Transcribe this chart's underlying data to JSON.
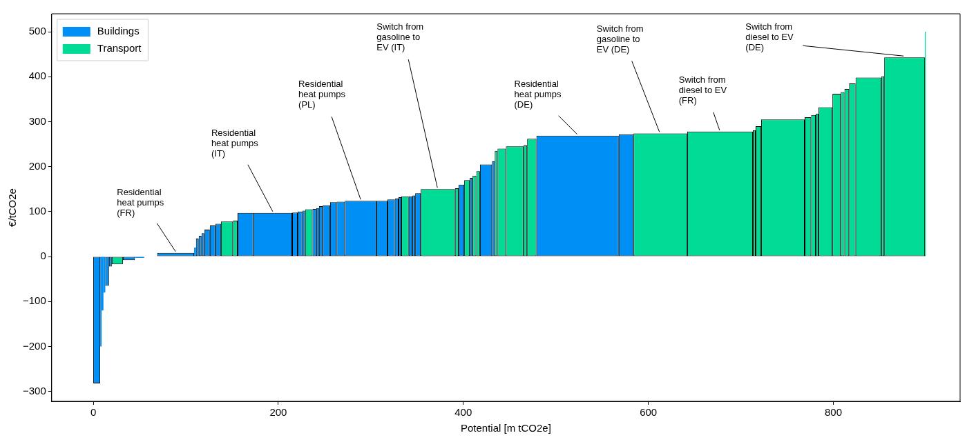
{
  "chart_data": {
    "type": "histogram",
    "xlabel": "Potential [m tCO2e]",
    "ylabel": "€/tCO2e",
    "bins": [
      0,
      7.5,
      9,
      11,
      13,
      17,
      20,
      32,
      45,
      55,
      69,
      109,
      111,
      114,
      117,
      120,
      126,
      132,
      138,
      151,
      156,
      173,
      215,
      221,
      226,
      229,
      237,
      241,
      244,
      248,
      256,
      263,
      272,
      306,
      318,
      326,
      330,
      333,
      341,
      345,
      348,
      354,
      391,
      395,
      401,
      407,
      410,
      414,
      418,
      431,
      434,
      437,
      446,
      465,
      469,
      479,
      568,
      584,
      642,
      713,
      716,
      722,
      769,
      776,
      781,
      784,
      799,
      808,
      812,
      817,
      824,
      852,
      855,
      899,
      900
    ],
    "series": [
      {
        "name": "Buildings",
        "color": "#008ff5",
        "values": [
          -282,
          -200,
          -120,
          -80,
          -65,
          -22,
          null,
          -8,
          -3,
          1,
          8,
          20,
          40,
          46,
          52,
          60,
          69,
          73,
          null,
          null,
          97,
          97,
          98,
          100,
          102,
          null,
          106,
          108,
          112,
          114,
          121,
          122,
          124,
          124,
          127,
          129,
          132,
          null,
          134,
          136,
          141,
          null,
          null,
          160,
          null,
          175,
          null,
          null,
          205,
          212,
          null,
          null,
          null,
          null,
          null,
          269,
          272,
          null,
          null,
          null,
          null,
          null,
          null,
          null,
          null,
          null,
          null,
          null,
          null,
          null,
          null,
          null,
          null,
          null
        ]
      },
      {
        "name": "Transport",
        "color": "#00dc96",
        "values": [
          null,
          null,
          null,
          null,
          null,
          null,
          -17,
          null,
          null,
          null,
          null,
          null,
          null,
          null,
          null,
          null,
          null,
          null,
          78,
          80,
          null,
          null,
          null,
          null,
          null,
          105,
          null,
          null,
          null,
          null,
          null,
          null,
          null,
          null,
          null,
          null,
          null,
          134,
          null,
          null,
          null,
          150,
          152,
          null,
          170,
          null,
          180,
          190,
          null,
          null,
          235,
          240,
          245,
          247,
          262,
          null,
          null,
          274,
          278,
          281,
          290,
          305,
          310,
          315,
          318,
          332,
          362,
          366,
          373,
          385,
          398,
          401,
          443,
          500
        ]
      }
    ],
    "xlim": [
      -45,
      937
    ],
    "xticks": [
      0,
      200,
      400,
      600,
      800
    ],
    "ylim": [
      -322,
      540
    ],
    "yticks": [
      -300,
      -200,
      -100,
      0,
      100,
      200,
      300,
      400,
      500
    ],
    "grid": false,
    "legend": "top left",
    "annotations": [
      {
        "text": "Residential\nheat pumps\n(FR)",
        "x": 89,
        "y": 8
      },
      {
        "text": "Residential\nheat pumps\n(IT)",
        "x": 194,
        "y": 97
      },
      {
        "text": "Residential\nheat pumps\n(PL)",
        "x": 289,
        "y": 124
      },
      {
        "text": "Switch from\ngasoline to\nEV (IT)",
        "x": 372,
        "y": 150
      },
      {
        "text": "Residential\nheat pumps\n(DE)",
        "x": 523,
        "y": 269
      },
      {
        "text": "Switch from\ngasoline to\nEV (DE)",
        "x": 612,
        "y": 274
      },
      {
        "text": "Switch from\ndiesel to EV\n(FR)",
        "x": 677,
        "y": 278
      },
      {
        "text": "Switch from\ndiesel to EV\n(DE)",
        "x": 876,
        "y": 443
      }
    ]
  }
}
